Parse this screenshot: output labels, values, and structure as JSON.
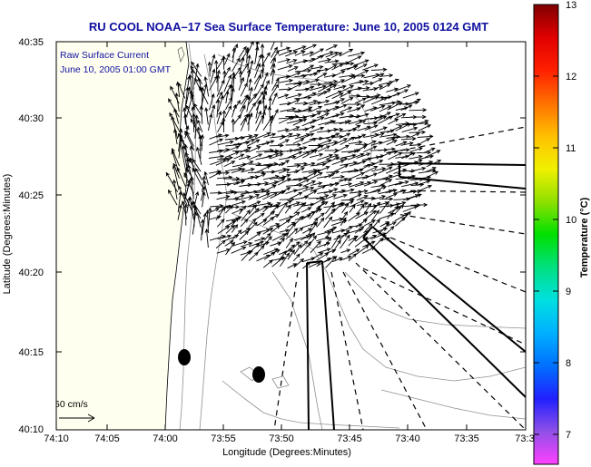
{
  "title": "RU COOL  NOAA–17  Sea Surface Temperature:  June 10, 2005 0124 GMT",
  "legend": {
    "line1": "Raw Surface Current",
    "line2": "June 10, 2005 01:00 GMT",
    "scale_label": "50 cm/s"
  },
  "axes": {
    "xlabel": "Longitude (Degrees:Minutes)",
    "ylabel": "Latitude (Degrees:Minutes)",
    "x_ticks": [
      "74:10",
      "74:05",
      "74:00",
      "73:55",
      "73:50",
      "73:45",
      "73:40",
      "73:35",
      "73:3"
    ],
    "y_ticks": [
      "40:35",
      "40:30",
      "40:25",
      "40:20",
      "40:15",
      "40:10"
    ]
  },
  "colorbar": {
    "label": "Temperature (°C)",
    "ticks": [
      "13",
      "12",
      "11",
      "10",
      "9",
      "8",
      "7"
    ],
    "range": [
      6.6,
      13
    ],
    "colors": [
      "#ff40ff",
      "#9050e8",
      "#2020ff",
      "#0070ff",
      "#00b0ff",
      "#00e0e0",
      "#00e080",
      "#00e000",
      "#90e000",
      "#f0f000",
      "#ffc000",
      "#ff7000",
      "#ff2000",
      "#e00000",
      "#800000"
    ]
  },
  "map": {
    "land_color": "#fffff0",
    "arrow_color": "#000000"
  }
}
